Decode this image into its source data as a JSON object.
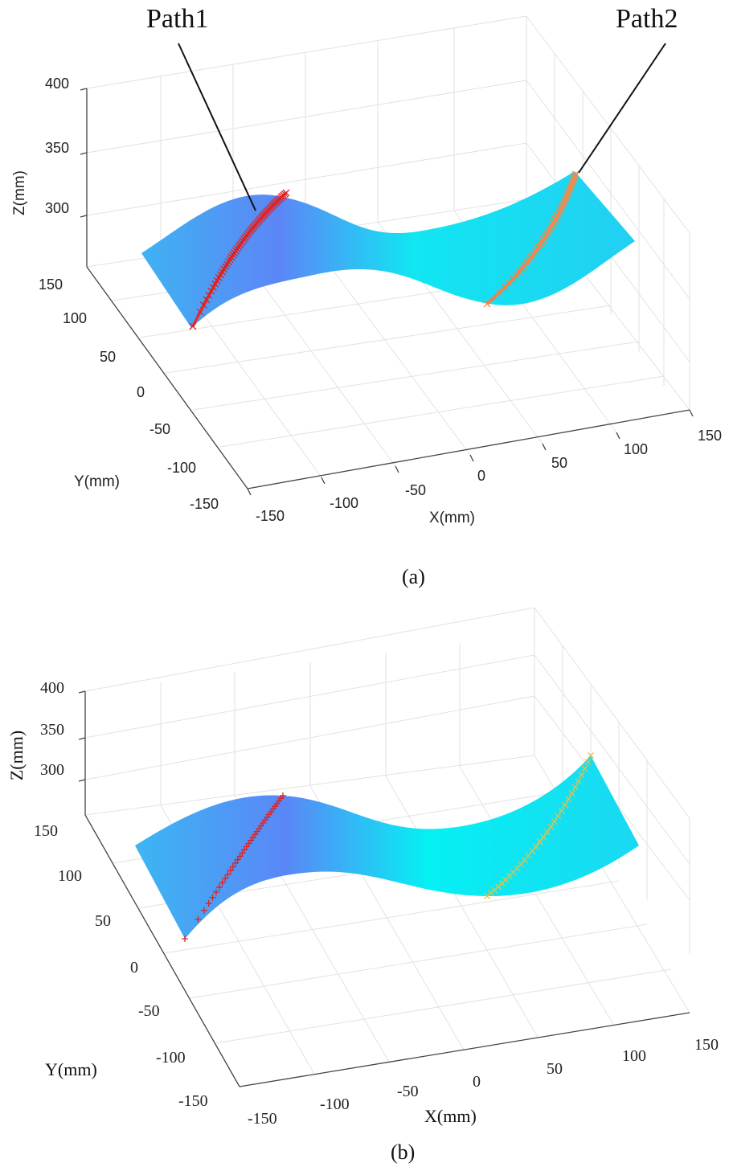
{
  "chart_data": [
    {
      "type": "surface3d",
      "panel_label": "(a)",
      "axes": {
        "x": {
          "label": "X(mm)",
          "ticks": [
            "-150",
            "-100",
            "-50",
            "0",
            "50",
            "100",
            "150"
          ],
          "range": [
            -150,
            150
          ]
        },
        "y": {
          "label": "Y(mm)",
          "ticks": [
            "150",
            "100",
            "50",
            "0",
            "-50",
            "-100",
            "-150"
          ],
          "range": [
            -150,
            150
          ]
        },
        "z": {
          "label": "Z(mm)",
          "ticks": [
            "400",
            "350",
            "300"
          ],
          "range": [
            260,
            400
          ]
        }
      },
      "grid": true,
      "surface": {
        "shape": "sinusoidal saddle",
        "colormap": [
          "#4aa8f5",
          "#5a8cf8",
          "#00f2f2",
          "#1ad8f0"
        ]
      },
      "series": [
        {
          "name": "Path1",
          "color": "#e02020",
          "marker": "x"
        },
        {
          "name": "Path2",
          "color": "#f08a4a",
          "marker": "x"
        }
      ],
      "annotations": [
        "Path1",
        "Path2"
      ]
    },
    {
      "type": "surface3d",
      "panel_label": "(b)",
      "axes": {
        "x": {
          "label": "X(mm)",
          "ticks": [
            "-150",
            "-100",
            "-50",
            "0",
            "50",
            "100",
            "150"
          ],
          "range": [
            -150,
            150
          ]
        },
        "y": {
          "label": "Y(mm)",
          "ticks": [
            "150",
            "100",
            "50",
            "0",
            "-50",
            "-100",
            "-150"
          ],
          "range": [
            -150,
            150
          ]
        },
        "z": {
          "label": "Z(mm)",
          "ticks": [
            "400",
            "350",
            "300"
          ],
          "range": [
            260,
            400
          ]
        }
      },
      "grid": true,
      "surface": {
        "shape": "sinusoidal saddle",
        "colormap": [
          "#4aa8f5",
          "#5a8cf8",
          "#00f2f2",
          "#1ad8f0"
        ]
      },
      "series": [
        {
          "name": "",
          "color": "#e02020",
          "marker": "+ / x"
        },
        {
          "name": "",
          "color": "#e8c040",
          "marker": "x"
        }
      ]
    }
  ]
}
